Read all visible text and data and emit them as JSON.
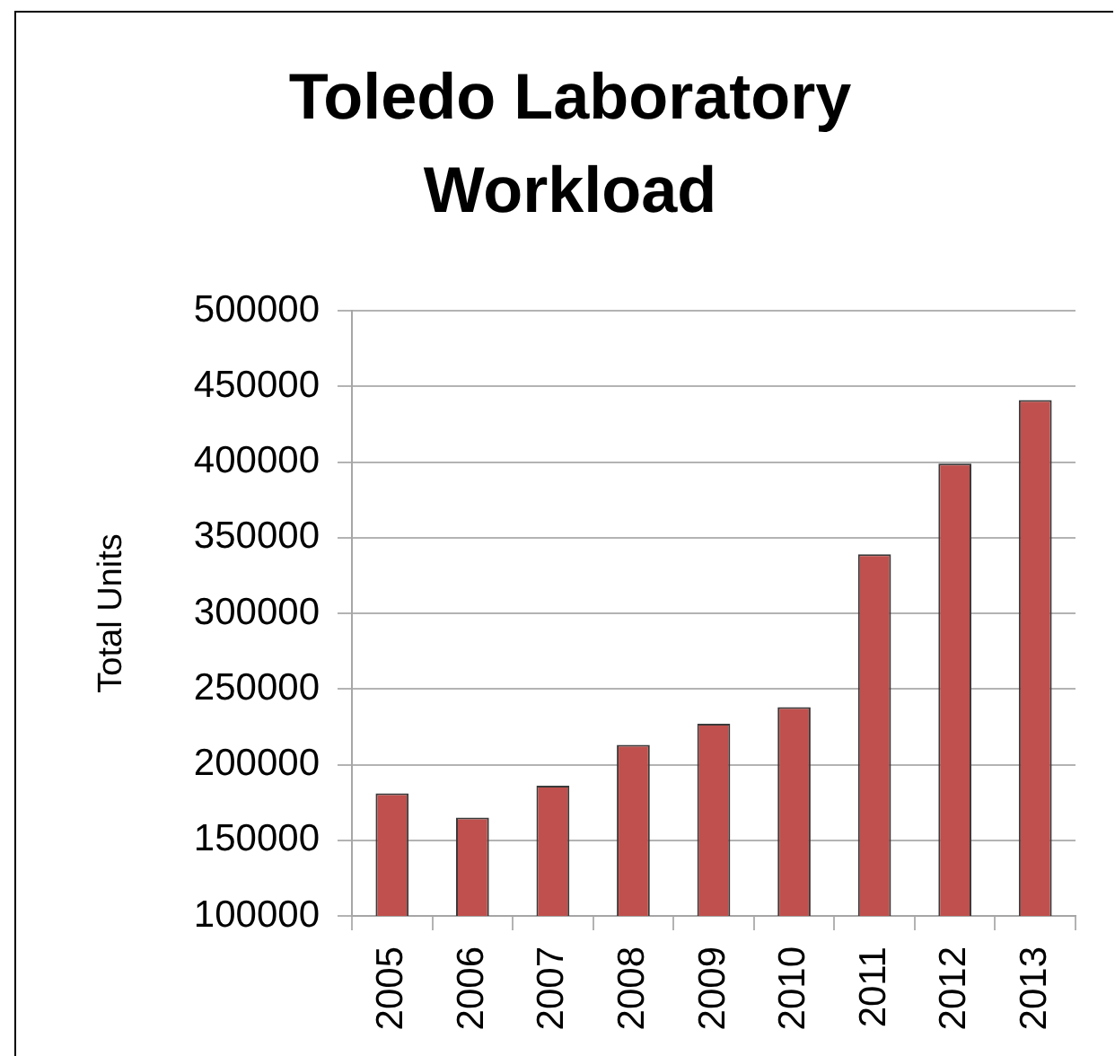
{
  "chart_data": {
    "type": "bar",
    "title": "Toledo Laboratory Workload",
    "ylabel": "Total Units",
    "categories": [
      "2005",
      "2006",
      "2007",
      "2008",
      "2009",
      "2010",
      "2011",
      "2012",
      "2013"
    ],
    "values": [
      181000,
      165000,
      186000,
      213000,
      227000,
      238000,
      339000,
      399000,
      441000
    ],
    "color": "#c0504d",
    "ylim": [
      100000,
      500000
    ],
    "yticks": [
      100000,
      150000,
      200000,
      250000,
      300000,
      350000,
      400000,
      450000,
      500000
    ],
    "grid": "y"
  }
}
